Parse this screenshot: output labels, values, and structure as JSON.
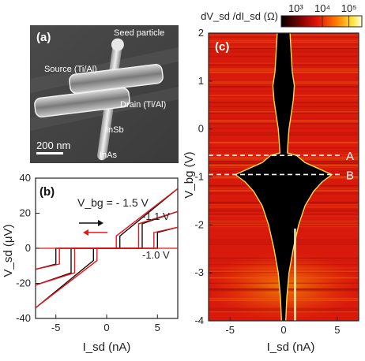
{
  "panel_a": {
    "label": "(a)",
    "annotations": {
      "seed": "Seed particle",
      "source": "Source (Ti/Al)",
      "drain": "Drain (Ti/Al)",
      "insb": "InSb",
      "inas": "InAs"
    },
    "scalebar": "200 nm"
  },
  "panel_b": {
    "label": "(b)"
  },
  "panel_c": {
    "label": "(c)"
  },
  "chart_data": [
    {
      "panel": "b",
      "type": "line",
      "xlabel": "I_sd (nA)",
      "ylabel": "V_sd (μV)",
      "xlim": [
        -7,
        7
      ],
      "ylim": [
        -40,
        40
      ],
      "x_ticks": [
        "-5",
        "0",
        "5"
      ],
      "y_ticks": [
        "-40",
        "-20",
        "0",
        "20",
        "40"
      ],
      "annotations": {
        "vbg_main": "V_bg = - 1.5 V",
        "vbg_1": "-1.1 V",
        "vbg_2": "-1.0 V"
      },
      "sweep_colors": {
        "up": "#111111",
        "down": "#e8141b"
      },
      "curves": [
        {
          "vbg": -1.5,
          "switch_up": 1.3,
          "switch_down": -1.3,
          "normal": [
            [
              1.3,
              7
            ],
            [
              7,
              34
            ]
          ],
          "normal_neg": [
            [
              -1.3,
              -7
            ],
            [
              -7,
              -34
            ]
          ]
        },
        {
          "vbg": -1.1,
          "switch_up": 3.5,
          "switch_down": -3.5,
          "normal": [
            [
              3.5,
              14
            ],
            [
              7,
              21
            ]
          ],
          "normal_neg": [
            [
              -3.5,
              -14
            ],
            [
              -7,
              -21
            ]
          ]
        },
        {
          "vbg": -1.0,
          "switch_up": 5.0,
          "switch_down": -5.0,
          "normal": [
            [
              5.0,
              9
            ],
            [
              7,
              12
            ]
          ],
          "normal_neg": [
            [
              -5.0,
              -9
            ],
            [
              -7,
              -12
            ]
          ]
        }
      ]
    },
    {
      "panel": "c",
      "type": "heatmap",
      "xlabel": "I_sd (nA)",
      "ylabel": "V_bg (V)",
      "xlim": [
        -7,
        7
      ],
      "ylim": [
        -4,
        2
      ],
      "x_ticks": [
        "-5",
        "0",
        "5"
      ],
      "y_ticks": [
        "2",
        "1",
        "0",
        "-1",
        "-2",
        "-3",
        "-4"
      ],
      "colorbar": {
        "label": "dV_sd /dI_sd (Ω)",
        "scale": "log",
        "ticks": [
          "10³",
          "10⁴",
          "10⁵"
        ],
        "colors": [
          "#000000",
          "#7a0000",
          "#e2160c",
          "#ff7a00",
          "#ffe23a",
          "#ffffe0"
        ]
      },
      "markers": [
        {
          "label": "A",
          "vbg": -0.55
        },
        {
          "label": "B",
          "vbg": -0.95
        }
      ],
      "switching_current_profile": [
        [
          2.0,
          0.6
        ],
        [
          1.6,
          0.7
        ],
        [
          1.2,
          0.8
        ],
        [
          0.9,
          1.0
        ],
        [
          0.6,
          0.9
        ],
        [
          0.3,
          0.7
        ],
        [
          0.0,
          0.5
        ],
        [
          -0.3,
          0.4
        ],
        [
          -0.5,
          0.35
        ],
        [
          -0.55,
          1.2
        ],
        [
          -0.7,
          2.0
        ],
        [
          -0.8,
          3.0
        ],
        [
          -0.95,
          4.5
        ],
        [
          -1.1,
          3.6
        ],
        [
          -1.3,
          2.8
        ],
        [
          -1.6,
          2.0
        ],
        [
          -2.0,
          1.4
        ],
        [
          -2.5,
          0.9
        ],
        [
          -3.0,
          0.5
        ],
        [
          -3.5,
          0.3
        ],
        [
          -4.0,
          0.2
        ]
      ]
    }
  ]
}
